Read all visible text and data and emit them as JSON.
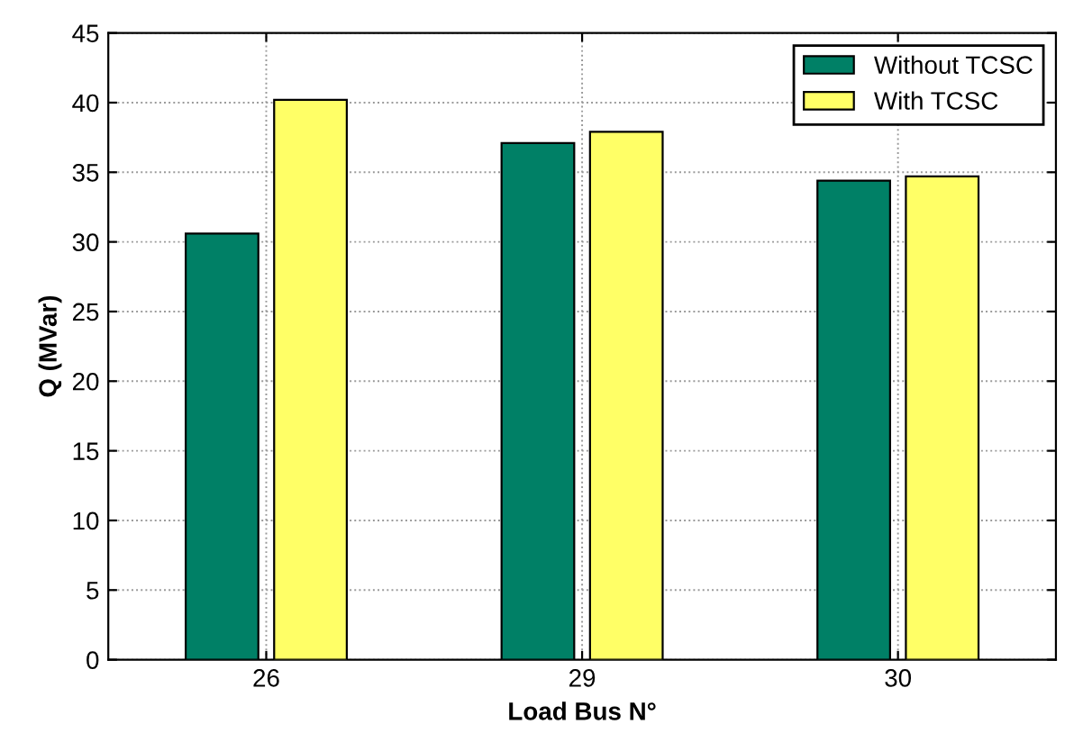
{
  "chart_data": {
    "type": "bar",
    "xlabel": "Load Bus N°",
    "ylabel": "Q (MVar)",
    "categories": [
      "26",
      "29",
      "30"
    ],
    "series": [
      {
        "name": "Without TCSC",
        "color": "#008066",
        "values": [
          30.6,
          37.1,
          34.4
        ]
      },
      {
        "name": "With TCSC",
        "color": "#ffff66",
        "values": [
          40.2,
          37.9,
          34.7
        ]
      }
    ],
    "ylim": [
      0,
      45
    ],
    "yticks": [
      0,
      5,
      10,
      15,
      20,
      25,
      30,
      35,
      40,
      45
    ],
    "grid": true,
    "legend": "top right"
  }
}
